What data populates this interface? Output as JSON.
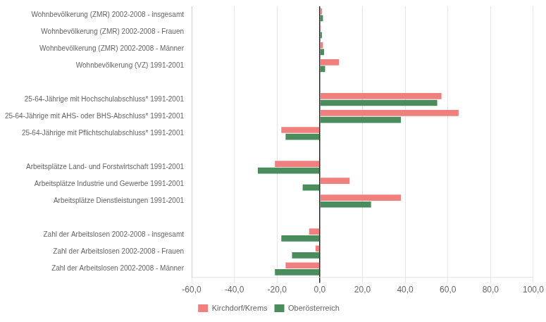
{
  "chart_data": {
    "type": "bar",
    "orientation": "horizontal",
    "categories": [
      "Wohnbevölkerung (ZMR) 2002-2008 - insgesamt",
      "Wohnbevölkerung (ZMR) 2002-2008 - Frauen",
      "Wohnbevölkerung (ZMR) 2002-2008 - Männer",
      "Wohnbevölkerung (VZ) 1991-2001",
      null,
      "25-64-Jährige mit Hochschulabschluss* 1991-2001",
      "25-64-Jährige mit AHS- oder BHS-Abschluss* 1991-2001",
      "25-64-Jährige mit Pflichtschulabschluss* 1991-2001",
      null,
      "Arbeitsplätze Land- und Forstwirtschaft 1991-2001",
      "Arbeitsplätze Industrie und Gewerbe 1991-2001",
      "Arbeitsplätze Dienstleistungen 1991-2001",
      null,
      "Zahl der Arbeitslosen 2002-2008 - insgesamt",
      "Zahl der Arbeitslosen 2002-2008 - Frauen",
      "Zahl der Arbeitslosen 2002-2008 - Männer"
    ],
    "series": [
      {
        "name": "Kirchdorf/Krems",
        "color": "#F08080",
        "values": [
          1.0,
          0.5,
          1.5,
          9.0,
          null,
          57.0,
          65.0,
          -18.0,
          null,
          -21.0,
          14.0,
          38.0,
          null,
          -5.0,
          -2.0,
          -16.0
        ]
      },
      {
        "name": "Oberösterreich",
        "color": "#4A8C5C",
        "values": [
          1.5,
          1.0,
          2.0,
          2.5,
          null,
          55.0,
          38.0,
          -16.0,
          null,
          -29.0,
          -8.0,
          24.0,
          null,
          -18.0,
          -13.0,
          -21.0
        ]
      }
    ],
    "xlim": [
      -60,
      100
    ],
    "xticks": [
      {
        "value": -60,
        "label": "-60,0"
      },
      {
        "value": -40,
        "label": "-40,0"
      },
      {
        "value": -20,
        "label": "-20,0"
      },
      {
        "value": 0,
        "label": "0,0"
      },
      {
        "value": 20,
        "label": "20,0"
      },
      {
        "value": 40,
        "label": "40,0"
      },
      {
        "value": 60,
        "label": "60,0"
      },
      {
        "value": 80,
        "label": "80,0"
      },
      {
        "value": 100,
        "label": "100,0"
      }
    ],
    "grid": true,
    "legend": "bottom"
  }
}
